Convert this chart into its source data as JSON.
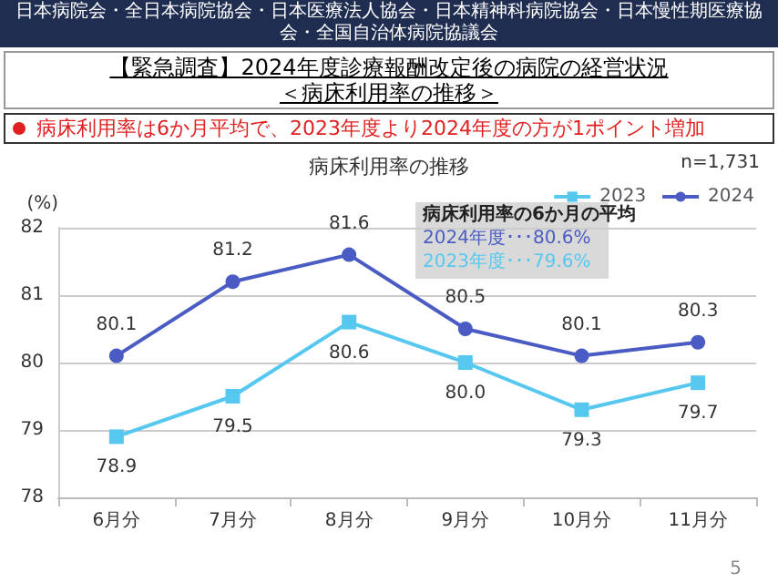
{
  "chart_data": {
    "type": "line",
    "title": "【緊急調査】2024年度診療報酬改定後の病院の経営状況",
    "subtitle": "＜病床利用率の推移＞",
    "ylabel": "(%)",
    "annotations": [
      "日本病院会・全日本病院協会・日本医療法人協会・日本精神科病院協会・日本慢性期医療協会・全国自治体病院協議会",
      "病床利用率は6か月平均で、2023年度より2024年度の方が1ポイント増加",
      "病床利用率の推移",
      "n=1,731",
      "病床利用率の6か月の平均",
      "2024年度･･･80.6%",
      "2023年度･･･79.6%",
      "5"
    ],
    "categories": [
      "6月分",
      "7月分",
      "8月分",
      "9月分",
      "10月分",
      "11月分"
    ],
    "series": [
      {
        "name": "2023",
        "color": "#56c8f0",
        "marker": "square",
        "values": [
          78.9,
          79.5,
          80.6,
          80.0,
          79.3,
          79.7
        ],
        "value_labels": [
          "78.9",
          "79.5",
          "80.6",
          "80.0",
          "79.3",
          "79.7"
        ]
      },
      {
        "name": "2024",
        "color": "#4a5bc4",
        "marker": "circle",
        "values": [
          80.1,
          81.2,
          81.6,
          80.5,
          80.1,
          80.3
        ],
        "value_labels": [
          "80.1",
          "81.2",
          "81.6",
          "80.5",
          "80.1",
          "80.3"
        ]
      }
    ],
    "ylim": [
      78,
      82
    ],
    "yticks": [
      78,
      79,
      80,
      81,
      82
    ],
    "grid": "y",
    "legend": "top right"
  }
}
